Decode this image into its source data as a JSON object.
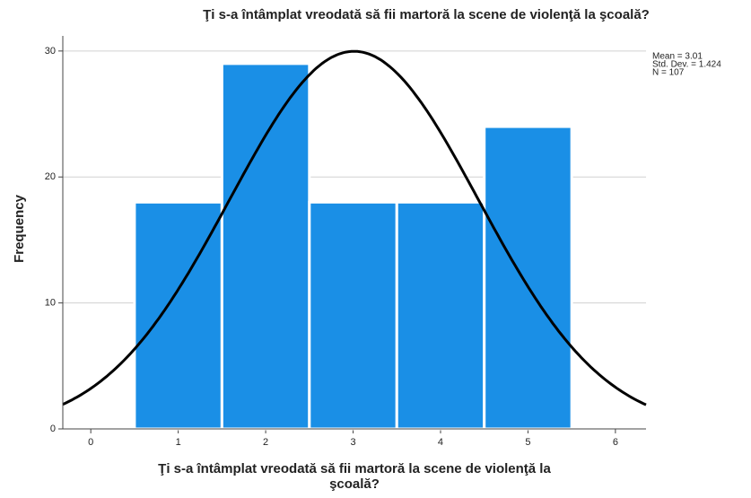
{
  "chart_data": {
    "type": "histogram",
    "title": "Ţi s-a întâmplat vreodată să fii martoră la scene de violenţă la şcoală?",
    "xlabel": [
      "Ţi s-a întâmplat vreodată să fii martoră la scene de violenţă la",
      "şcoală?"
    ],
    "ylabel": "Frequency",
    "bins": [
      0.5,
      1.5,
      2.5,
      3.5,
      4.5,
      5.5
    ],
    "counts": [
      18,
      29,
      18,
      18,
      24
    ],
    "color": "#1a8fe6",
    "curve_color": "#000000",
    "xlim": [
      -0.32,
      6.35
    ],
    "xticks": [
      0,
      1,
      2,
      3,
      4,
      5,
      6
    ],
    "ylim": [
      0,
      31.2
    ],
    "yticks": [
      0,
      10,
      20,
      30
    ],
    "grid": true,
    "stats": {
      "mean": {
        "value": 3.01,
        "label": "Mean = 3.01"
      },
      "std_dev": {
        "value": 1.424,
        "label": "Std. Dev. = 1.424"
      },
      "n": {
        "value": 107,
        "label": "N = 107"
      }
    }
  }
}
